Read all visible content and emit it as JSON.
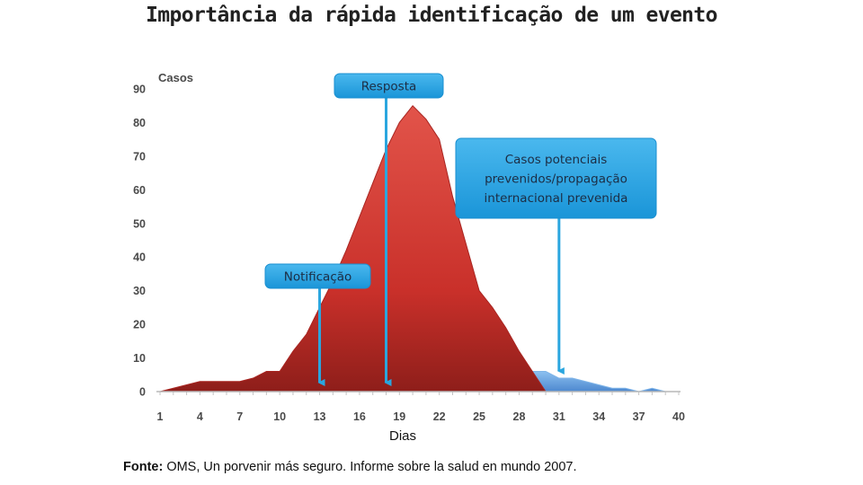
{
  "title": "Importância da rápida identificação de um evento",
  "source": {
    "label": "Fonte:",
    "text": "OMS, Un porvenir más seguro. Informe sobre la salud en mundo 2007."
  },
  "colors": {
    "epidemic": "#c9302a",
    "prevented": "#6fa8e6",
    "callout": "#1e9fe0",
    "arrow": "#2aa6df"
  },
  "chart_data": {
    "type": "area",
    "ylabel": "Casos",
    "xlabel": "Dias",
    "ylim": [
      0,
      90
    ],
    "xlim": [
      1,
      40
    ],
    "y_ticks": [
      0,
      10,
      20,
      30,
      40,
      50,
      60,
      70,
      80,
      90
    ],
    "x_ticks": [
      1,
      4,
      7,
      10,
      13,
      16,
      19,
      22,
      25,
      28,
      31,
      34,
      37,
      40
    ],
    "grid": false,
    "series": [
      {
        "x": [
          1,
          2,
          3,
          4,
          5,
          6,
          7,
          8,
          9,
          10,
          11,
          12,
          13,
          14,
          15,
          16,
          17,
          18,
          19,
          20,
          21,
          22,
          23,
          24,
          25,
          26,
          27,
          28,
          29,
          30
        ],
        "values": [
          0,
          1,
          2,
          3,
          3,
          3,
          3,
          4,
          6,
          6,
          12,
          17,
          25,
          33,
          42,
          52,
          62,
          72,
          80,
          85,
          81,
          75,
          58,
          44,
          30,
          25,
          19,
          12,
          6,
          0
        ]
      },
      {
        "x": [
          29,
          30,
          31,
          32,
          33,
          34,
          35,
          36,
          37,
          38,
          39,
          40
        ],
        "values": [
          6,
          6,
          4,
          4,
          3,
          2,
          1,
          1,
          0,
          1,
          0,
          0
        ]
      }
    ],
    "annotations": [
      {
        "text": "Notificação",
        "x": 13
      },
      {
        "text": "Resposta",
        "x": 18
      },
      {
        "text": "Casos potenciais prevenidos/propagação internacional prevenida",
        "x": 31
      }
    ],
    "annotation_lines": [
      [
        "Casos potenciais",
        "prevenidos/propagação",
        "internacional prevenida"
      ]
    ]
  }
}
